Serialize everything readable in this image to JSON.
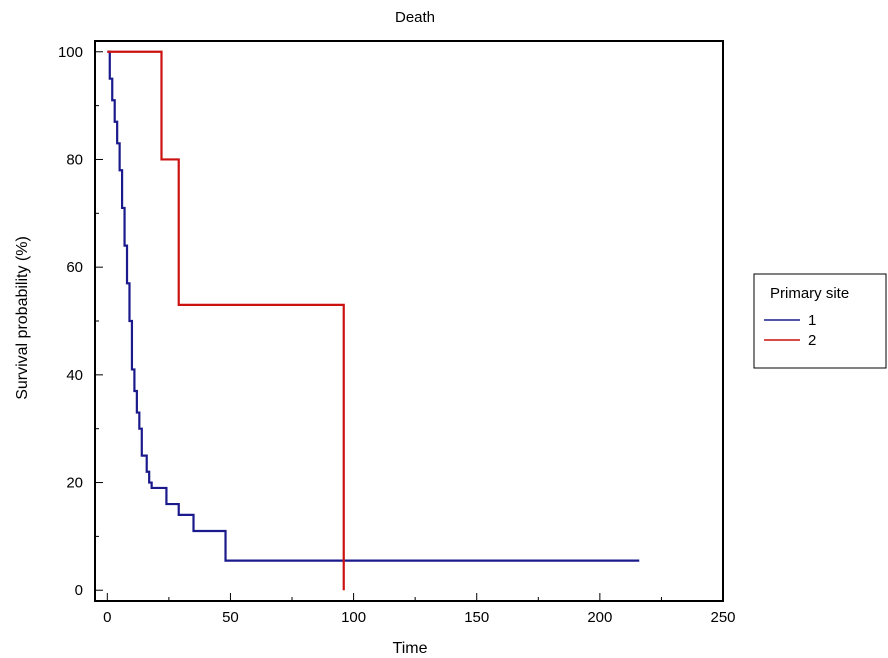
{
  "chart_data": {
    "type": "line",
    "step": true,
    "title": "Death",
    "xlabel": "Time",
    "ylabel": "Survival probability (%)",
    "xlim": [
      -5,
      250
    ],
    "ylim": [
      -2,
      102
    ],
    "xticks": [
      0,
      50,
      100,
      150,
      200,
      250
    ],
    "yticks": [
      0,
      20,
      40,
      60,
      80,
      100
    ],
    "legend": {
      "title": "Primary site",
      "position": "right"
    },
    "series": [
      {
        "name": "1",
        "color": "#1a1a8c",
        "x": [
          0,
          1,
          2,
          3,
          4,
          5,
          6,
          7,
          8,
          9,
          10,
          11,
          12,
          13,
          14,
          16,
          17,
          18,
          20,
          24,
          29,
          35,
          48,
          216
        ],
        "y": [
          100,
          95,
          91,
          87,
          83,
          78,
          71,
          64,
          57,
          50,
          41,
          37,
          33,
          30,
          25,
          22,
          20,
          19,
          19,
          16,
          14,
          11,
          5.5,
          5.5
        ]
      },
      {
        "name": "2",
        "color": "#cc1111",
        "x": [
          0,
          22,
          29,
          96,
          96
        ],
        "y": [
          100,
          80,
          53,
          53,
          0
        ]
      }
    ]
  }
}
